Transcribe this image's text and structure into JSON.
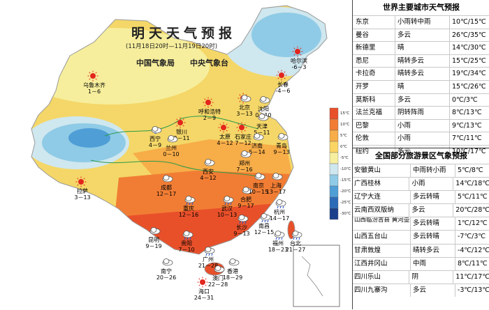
{
  "map": {
    "title": "明天天气预报",
    "subtitle": "(11月18日20时—11月19日20时)",
    "agency1": "中国气象局",
    "agency2": "中央气象台",
    "legend": [
      "15℃",
      "10℃",
      "5℃",
      "0℃",
      "-5℃",
      "-10℃",
      "-15℃",
      "-20℃",
      "-25℃",
      "-30℃"
    ],
    "legend_colors": [
      "#e8502a",
      "#f17d34",
      "#f7ad48",
      "#fbd564",
      "#f6efa0",
      "#cfe7ef",
      "#8fcbe6",
      "#4f9ed6",
      "#2c6bb8",
      "#1c3f8c"
    ],
    "cities": [
      {
        "name": "乌鲁木齐",
        "temp": "1－6",
        "icon": "sun"
      },
      {
        "name": "哈尔滨",
        "temp": "-6－3",
        "icon": "sun"
      },
      {
        "name": "长春",
        "temp": "-4－6",
        "icon": "sun"
      },
      {
        "name": "沈阳",
        "temp": "0－10",
        "icon": "cloud"
      },
      {
        "name": "呼和浩特",
        "temp": "2－9",
        "icon": "sun"
      },
      {
        "name": "北京",
        "temp": "3－13",
        "icon": "sun-cloud"
      },
      {
        "name": "天津",
        "temp": "5－11",
        "icon": "cloud"
      },
      {
        "name": "银川",
        "temp": "0－11",
        "icon": "sun"
      },
      {
        "name": "太原",
        "temp": "4－12",
        "icon": "sun"
      },
      {
        "name": "石家庄",
        "temp": "7－12",
        "icon": "sun"
      },
      {
        "name": "济南",
        "temp": "5－14",
        "icon": "cloud"
      },
      {
        "name": "青岛",
        "temp": "9－13",
        "icon": "cloud"
      },
      {
        "name": "西宁",
        "temp": "4－9",
        "icon": "snow"
      },
      {
        "name": "兰州",
        "temp": "0－10",
        "icon": "cloud"
      },
      {
        "name": "西安",
        "temp": "4－12",
        "icon": "cloud"
      },
      {
        "name": "郑州",
        "temp": "7－16",
        "icon": "cloud"
      },
      {
        "name": "拉萨",
        "temp": "3－13",
        "icon": "sun"
      },
      {
        "name": "成都",
        "temp": "12－17",
        "icon": "cloud"
      },
      {
        "name": "合肥",
        "temp": "9－17",
        "icon": "cloud"
      },
      {
        "name": "南京",
        "temp": "10－15",
        "icon": "cloud"
      },
      {
        "name": "上海",
        "temp": "13－17",
        "icon": "cloud"
      },
      {
        "name": "重庆",
        "temp": "12－16",
        "icon": "rain"
      },
      {
        "name": "武汉",
        "temp": "10－13",
        "icon": "rain"
      },
      {
        "name": "杭州",
        "temp": "14－17",
        "icon": "rain"
      },
      {
        "name": "长沙",
        "temp": "9－13",
        "icon": "rain"
      },
      {
        "name": "南昌",
        "temp": "12－15",
        "icon": "rain"
      },
      {
        "name": "贵阳",
        "temp": "7－10",
        "icon": "rain"
      },
      {
        "name": "福州",
        "temp": "18－23",
        "icon": "rain"
      },
      {
        "name": "台北",
        "temp": "21－27",
        "icon": "rain"
      },
      {
        "name": "昆明",
        "temp": "9－19",
        "icon": "cloud"
      },
      {
        "name": "南宁",
        "temp": "20－26",
        "icon": "cloud"
      },
      {
        "name": "广州",
        "temp": "21－28",
        "icon": "rain"
      },
      {
        "name": "澳门",
        "temp": "22－28",
        "icon": "cloud"
      },
      {
        "name": "香港",
        "temp": "18－29",
        "icon": "cloud"
      },
      {
        "name": "海口",
        "temp": "24－31",
        "icon": "sun"
      }
    ]
  },
  "world": {
    "title": "世界主要城市天气预报",
    "rows": [
      {
        "city": "东京",
        "weather": "小雨转中雨",
        "temp": "10℃/15℃"
      },
      {
        "city": "曼谷",
        "weather": "多云",
        "temp": "26℃/35℃"
      },
      {
        "city": "新德里",
        "weather": "晴",
        "temp": "14℃/30℃"
      },
      {
        "city": "悉尼",
        "weather": "晴转多云",
        "temp": "15℃/25℃"
      },
      {
        "city": "卡拉奇",
        "weather": "晴转多云",
        "temp": "19℃/34℃"
      },
      {
        "city": "开罗",
        "weather": "晴",
        "temp": "15℃/26℃"
      },
      {
        "city": "莫斯科",
        "weather": "多云",
        "temp": "0℃/3℃"
      },
      {
        "city": "法兰克福",
        "weather": "阴转阵雨",
        "temp": "8℃/13℃"
      },
      {
        "city": "巴黎",
        "weather": "小雨",
        "temp": "9℃/13℃"
      },
      {
        "city": "伦敦",
        "weather": "小雨",
        "temp": "7℃/11℃"
      },
      {
        "city": "纽约",
        "weather": "多云",
        "temp": "10℃/17℃"
      }
    ]
  },
  "scenic": {
    "title": "全国部分旅游景区气象预报",
    "rows": [
      {
        "spot": "安徽黄山",
        "weather": "中雨转小雨",
        "temp": "5℃/8℃"
      },
      {
        "spot": "广西桂林",
        "weather": "小雨",
        "temp": "14℃/18℃"
      },
      {
        "spot": "辽宁大连",
        "weather": "多云转晴",
        "temp": "5℃/11℃"
      },
      {
        "spot": "云南西双版纳",
        "weather": "多云",
        "temp": "20℃/28℃"
      },
      {
        "spot": "山西临汾吉县 黄河壶口瀑布",
        "weather": "多云转晴",
        "temp": "1℃/12℃"
      },
      {
        "spot": "山西五台山",
        "weather": "多云转晴",
        "temp": "-7℃/3℃"
      },
      {
        "spot": "甘肃敦煌",
        "weather": "晴转多云",
        "temp": "-4℃/12℃"
      },
      {
        "spot": "江西井冈山",
        "weather": "中雨",
        "temp": "8℃/11℃"
      },
      {
        "spot": "四川乐山",
        "weather": "阴",
        "temp": "11℃/17℃"
      },
      {
        "spot": "四川九寨沟",
        "weather": "多云",
        "temp": "-3℃/13℃"
      }
    ]
  }
}
